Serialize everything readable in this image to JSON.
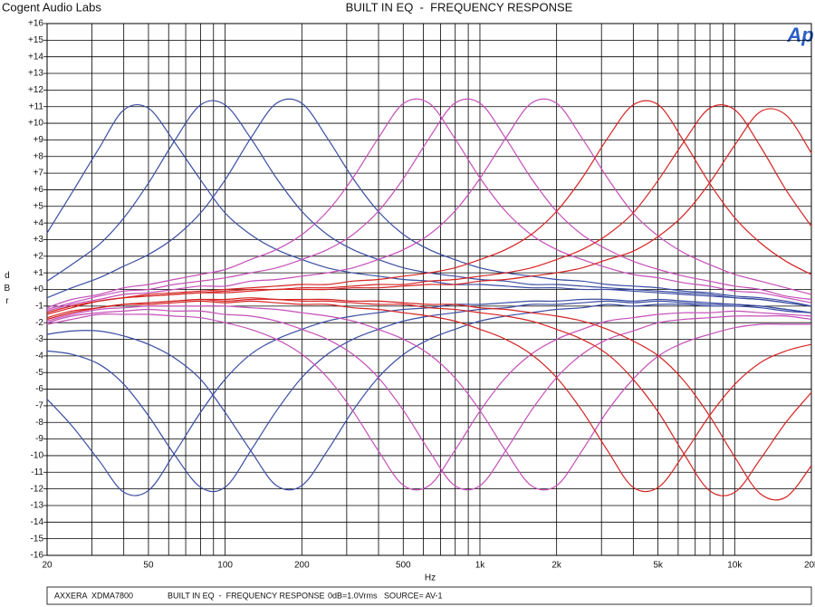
{
  "chart_data": {
    "type": "line",
    "header": "Cogent Audio Labs",
    "title": "BUILT IN EQ  -  FREQUENCY RESPONSE",
    "logo": "Ap",
    "ylabel": "dBr",
    "xlabel": "Hz",
    "footer": [
      "AXXERA  XDMA7800",
      "BUILT IN EQ  -  FREQUENCY RESPONSE",
      "0dB=1.0Vrms   SOURCE= AV-1"
    ],
    "xscale": "log",
    "grid": true,
    "xlim": [
      20,
      20000
    ],
    "ylim": [
      -16,
      16
    ],
    "xticks": [
      20,
      50,
      100,
      200,
      500,
      {
        "value": 1000,
        "label": "1k"
      },
      {
        "value": 2000,
        "label": "2k"
      },
      {
        "value": 5000,
        "label": "5k"
      },
      {
        "value": 10000,
        "label": "10k"
      },
      {
        "value": 20000,
        "label": "20k"
      }
    ],
    "xticks_minor": [
      30,
      40,
      60,
      70,
      80,
      90,
      300,
      400,
      600,
      700,
      800,
      900,
      3000,
      4000,
      6000,
      7000,
      8000,
      9000
    ],
    "yticks": [
      -16,
      -15,
      -14,
      -13,
      -12,
      -11,
      -10,
      -9,
      -8,
      -7,
      -6,
      -5,
      -4,
      -3,
      -2,
      -1,
      {
        "value": 0,
        "label": "+0"
      },
      {
        "value": 1,
        "label": "+1"
      },
      {
        "value": 2,
        "label": "+2"
      },
      {
        "value": 3,
        "label": "+3"
      },
      {
        "value": 4,
        "label": "+4"
      },
      {
        "value": 5,
        "label": "+5"
      },
      {
        "value": 6,
        "label": "+6"
      },
      {
        "value": 7,
        "label": "+7"
      },
      {
        "value": 8,
        "label": "+8"
      },
      {
        "value": 9,
        "label": "+9"
      },
      {
        "value": 10,
        "label": "+10"
      },
      {
        "value": 11,
        "label": "+11"
      },
      {
        "value": 12,
        "label": "+12"
      },
      {
        "value": 13,
        "label": "+13"
      },
      {
        "value": 14,
        "label": "+14"
      },
      {
        "value": 15,
        "label": "+15"
      },
      {
        "value": 16,
        "label": "+16"
      }
    ],
    "x": [
      20,
      25,
      32,
      40,
      50,
      63,
      80,
      100,
      126,
      159,
      200,
      252,
      317,
      399,
      502,
      632,
      796,
      1002,
      1262,
      1589,
      2000,
      2518,
      3170,
      3991,
      5024,
      6325,
      7962,
      10024,
      12619,
      15887,
      20000
    ],
    "series": [
      {
        "color": "#3b4da3",
        "values": [
          3.4,
          5.8,
          8.5,
          10.8,
          10.9,
          8.9,
          6.6,
          4.6,
          3.3,
          2.4,
          1.8,
          1.3,
          1.0,
          0.8,
          0.6,
          0.5,
          0.3,
          0.3,
          0.2,
          0.1,
          0.1,
          0.0,
          0.0,
          -0.1,
          -0.2,
          -0.3,
          -0.4,
          -0.5,
          -0.6,
          -0.8,
          -1.0
        ]
      },
      {
        "color": "#3b4da3",
        "values": [
          -6.6,
          -8.2,
          -10.3,
          -12.2,
          -12.1,
          -9.9,
          -7.4,
          -5.4,
          -3.9,
          -3.0,
          -2.4,
          -1.9,
          -1.6,
          -1.4,
          -1.2,
          -1.1,
          -0.9,
          -0.9,
          -0.8,
          -0.7,
          -0.7,
          -0.6,
          -0.6,
          -0.7,
          -0.6,
          -0.7,
          -0.8,
          -0.9,
          -1.0,
          -1.2,
          -1.4
        ]
      },
      {
        "color": "#3b4da3",
        "values": [
          0.5,
          1.5,
          2.7,
          4.3,
          6.4,
          8.9,
          11.1,
          11.1,
          9.1,
          6.7,
          4.7,
          3.3,
          2.4,
          1.8,
          1.3,
          1.0,
          0.8,
          0.6,
          0.5,
          0.3,
          0.3,
          0.2,
          0.1,
          0.0,
          -0.1,
          -0.2,
          -0.3,
          -0.5,
          -0.6,
          -0.8,
          -1.0
        ]
      },
      {
        "color": "#3b4da3",
        "values": [
          -3.7,
          -3.9,
          -4.5,
          -5.7,
          -7.6,
          -9.9,
          -11.9,
          -11.9,
          -9.7,
          -7.3,
          -5.3,
          -3.9,
          -3.0,
          -2.4,
          -1.9,
          -1.6,
          -1.4,
          -1.2,
          -1.1,
          -0.9,
          -0.9,
          -0.8,
          -0.7,
          -0.8,
          -0.7,
          -0.8,
          -0.9,
          -0.9,
          -1.0,
          -1.2,
          -1.4
        ]
      },
      {
        "color": "#3b4da3",
        "values": [
          -0.5,
          0.1,
          0.7,
          1.4,
          2.1,
          3.1,
          4.6,
          6.6,
          9.1,
          11.2,
          11.2,
          9.1,
          6.7,
          4.7,
          3.3,
          2.4,
          1.8,
          1.3,
          1.0,
          0.8,
          0.6,
          0.5,
          0.3,
          0.2,
          0.1,
          -0.1,
          -0.2,
          -0.4,
          -0.5,
          -0.7,
          -1.0
        ]
      },
      {
        "color": "#3b4da3",
        "values": [
          -2.7,
          -2.5,
          -2.5,
          -2.8,
          -3.3,
          -4.1,
          -5.4,
          -7.4,
          -9.7,
          -11.8,
          -11.8,
          -9.7,
          -7.3,
          -5.3,
          -3.9,
          -3.0,
          -2.4,
          -1.9,
          -1.6,
          -1.4,
          -1.2,
          -1.1,
          -0.9,
          -1.0,
          -0.9,
          -0.9,
          -1.0,
          -1.0,
          -1.1,
          -1.3,
          -1.4
        ]
      },
      {
        "color": "#c54fb8",
        "values": [
          -1.1,
          -0.6,
          -0.3,
          0.1,
          0.3,
          0.6,
          0.9,
          1.2,
          1.8,
          2.4,
          3.3,
          4.7,
          6.7,
          9.1,
          11.2,
          11.2,
          9.1,
          6.7,
          4.7,
          3.3,
          2.4,
          1.8,
          1.3,
          0.9,
          0.7,
          0.4,
          0.2,
          -0.1,
          -0.2,
          -0.5,
          -0.8
        ]
      },
      {
        "color": "#c54fb8",
        "values": [
          -2.1,
          -1.8,
          -1.5,
          -1.5,
          -1.5,
          -1.6,
          -1.7,
          -2.0,
          -2.4,
          -3.0,
          -3.9,
          -5.3,
          -7.3,
          -9.7,
          -11.8,
          -11.8,
          -9.7,
          -7.3,
          -5.3,
          -3.9,
          -3.0,
          -2.4,
          -1.9,
          -1.7,
          -1.5,
          -1.4,
          -1.4,
          -1.3,
          -1.4,
          -1.5,
          -1.6
        ]
      },
      {
        "color": "#c54fb8",
        "values": [
          -1.2,
          -0.8,
          -0.4,
          -0.1,
          0.0,
          0.3,
          0.5,
          0.7,
          1.0,
          1.3,
          1.8,
          2.4,
          3.3,
          4.7,
          6.7,
          9.1,
          11.2,
          11.2,
          9.1,
          6.7,
          4.7,
          3.3,
          2.4,
          1.7,
          1.2,
          0.8,
          0.5,
          0.2,
          0.0,
          -0.4,
          -0.6
        ]
      },
      {
        "color": "#c54fb8",
        "values": [
          -2.0,
          -1.6,
          -1.4,
          -1.3,
          -1.2,
          -1.3,
          -1.3,
          -1.5,
          -1.6,
          -1.9,
          -2.4,
          -3.0,
          -3.9,
          -5.3,
          -7.3,
          -9.7,
          -11.8,
          -11.8,
          -9.7,
          -7.3,
          -5.3,
          -3.9,
          -3.0,
          -2.5,
          -2.0,
          -1.8,
          -1.7,
          -1.6,
          -1.6,
          -1.6,
          -1.8
        ]
      },
      {
        "color": "#c54fb8",
        "values": [
          -1.3,
          -0.9,
          -0.6,
          -0.3,
          -0.2,
          0.0,
          0.2,
          0.2,
          0.5,
          0.6,
          0.8,
          1.0,
          1.3,
          1.8,
          2.4,
          3.3,
          4.7,
          6.7,
          9.1,
          11.2,
          11.2,
          9.1,
          6.7,
          4.6,
          3.2,
          2.2,
          1.5,
          0.9,
          0.5,
          0.1,
          -0.3
        ]
      },
      {
        "color": "#c54fb8",
        "values": [
          -1.9,
          -1.5,
          -1.2,
          -1.1,
          -1.0,
          -1.0,
          -1.0,
          -1.0,
          -1.1,
          -1.2,
          -1.4,
          -1.6,
          -1.9,
          -2.4,
          -3.0,
          -3.9,
          -5.3,
          -7.3,
          -9.7,
          -11.8,
          -11.8,
          -9.7,
          -7.3,
          -5.4,
          -4.0,
          -3.2,
          -2.7,
          -2.3,
          -2.1,
          -2.1,
          -2.1
        ]
      },
      {
        "color": "#d62424",
        "values": [
          -1.4,
          -1.0,
          -0.7,
          -0.5,
          -0.3,
          -0.2,
          -0.1,
          0.0,
          0.1,
          0.2,
          0.3,
          0.3,
          0.5,
          0.6,
          0.8,
          1.0,
          1.3,
          1.8,
          2.4,
          3.3,
          4.7,
          6.7,
          9.1,
          11.1,
          11.1,
          8.9,
          6.4,
          4.3,
          2.8,
          1.7,
          0.9
        ]
      },
      {
        "color": "#d62424",
        "values": [
          -1.8,
          -1.4,
          -1.1,
          -0.9,
          -0.9,
          -0.8,
          -0.7,
          -0.8,
          -0.7,
          -0.8,
          -0.9,
          -0.9,
          -1.1,
          -1.2,
          -1.4,
          -1.6,
          -1.9,
          -2.4,
          -3.0,
          -3.9,
          -5.3,
          -7.3,
          -9.7,
          -11.9,
          -11.9,
          -9.9,
          -7.6,
          -5.7,
          -4.4,
          -3.7,
          -3.3
        ]
      },
      {
        "color": "#d62424",
        "values": [
          -1.4,
          -1.0,
          -0.7,
          -0.5,
          -0.4,
          -0.3,
          -0.2,
          -0.1,
          0.0,
          0.0,
          0.1,
          0.1,
          0.2,
          0.3,
          0.3,
          0.5,
          0.6,
          0.8,
          1.0,
          1.3,
          1.8,
          2.4,
          3.3,
          4.6,
          6.6,
          8.9,
          10.9,
          10.8,
          8.6,
          6.0,
          3.8
        ]
      },
      {
        "color": "#d62424",
        "values": [
          -1.8,
          -1.4,
          -1.1,
          -0.9,
          -0.8,
          -0.7,
          -0.6,
          -0.7,
          -0.6,
          -0.6,
          -0.7,
          -0.7,
          -0.8,
          -0.9,
          -0.9,
          -1.1,
          -1.2,
          -1.4,
          -1.6,
          -1.9,
          -2.4,
          -3.0,
          -3.9,
          -5.4,
          -7.4,
          -9.9,
          -12.1,
          -12.2,
          -10.2,
          -8.0,
          -6.2
        ]
      },
      {
        "color": "#d62424",
        "values": [
          -1.5,
          -1.1,
          -0.7,
          -0.5,
          -0.4,
          -0.3,
          -0.2,
          -0.2,
          -0.1,
          0.0,
          0.0,
          0.0,
          0.1,
          0.1,
          0.2,
          0.3,
          0.3,
          0.5,
          0.6,
          0.8,
          1.0,
          1.3,
          1.8,
          2.3,
          3.2,
          4.5,
          6.4,
          8.7,
          10.7,
          10.5,
          8.2
        ]
      },
      {
        "color": "#d62424",
        "values": [
          -1.7,
          -1.3,
          -1.1,
          -0.9,
          -0.8,
          -0.7,
          -0.6,
          -0.6,
          -0.5,
          -0.6,
          -0.6,
          -0.6,
          -0.7,
          -0.7,
          -0.8,
          -0.9,
          -0.9,
          -1.1,
          -1.2,
          -1.4,
          -1.6,
          -1.9,
          -2.4,
          -3.1,
          -4.0,
          -5.5,
          -7.6,
          -10.1,
          -12.3,
          -12.5,
          -10.6
        ]
      }
    ]
  }
}
